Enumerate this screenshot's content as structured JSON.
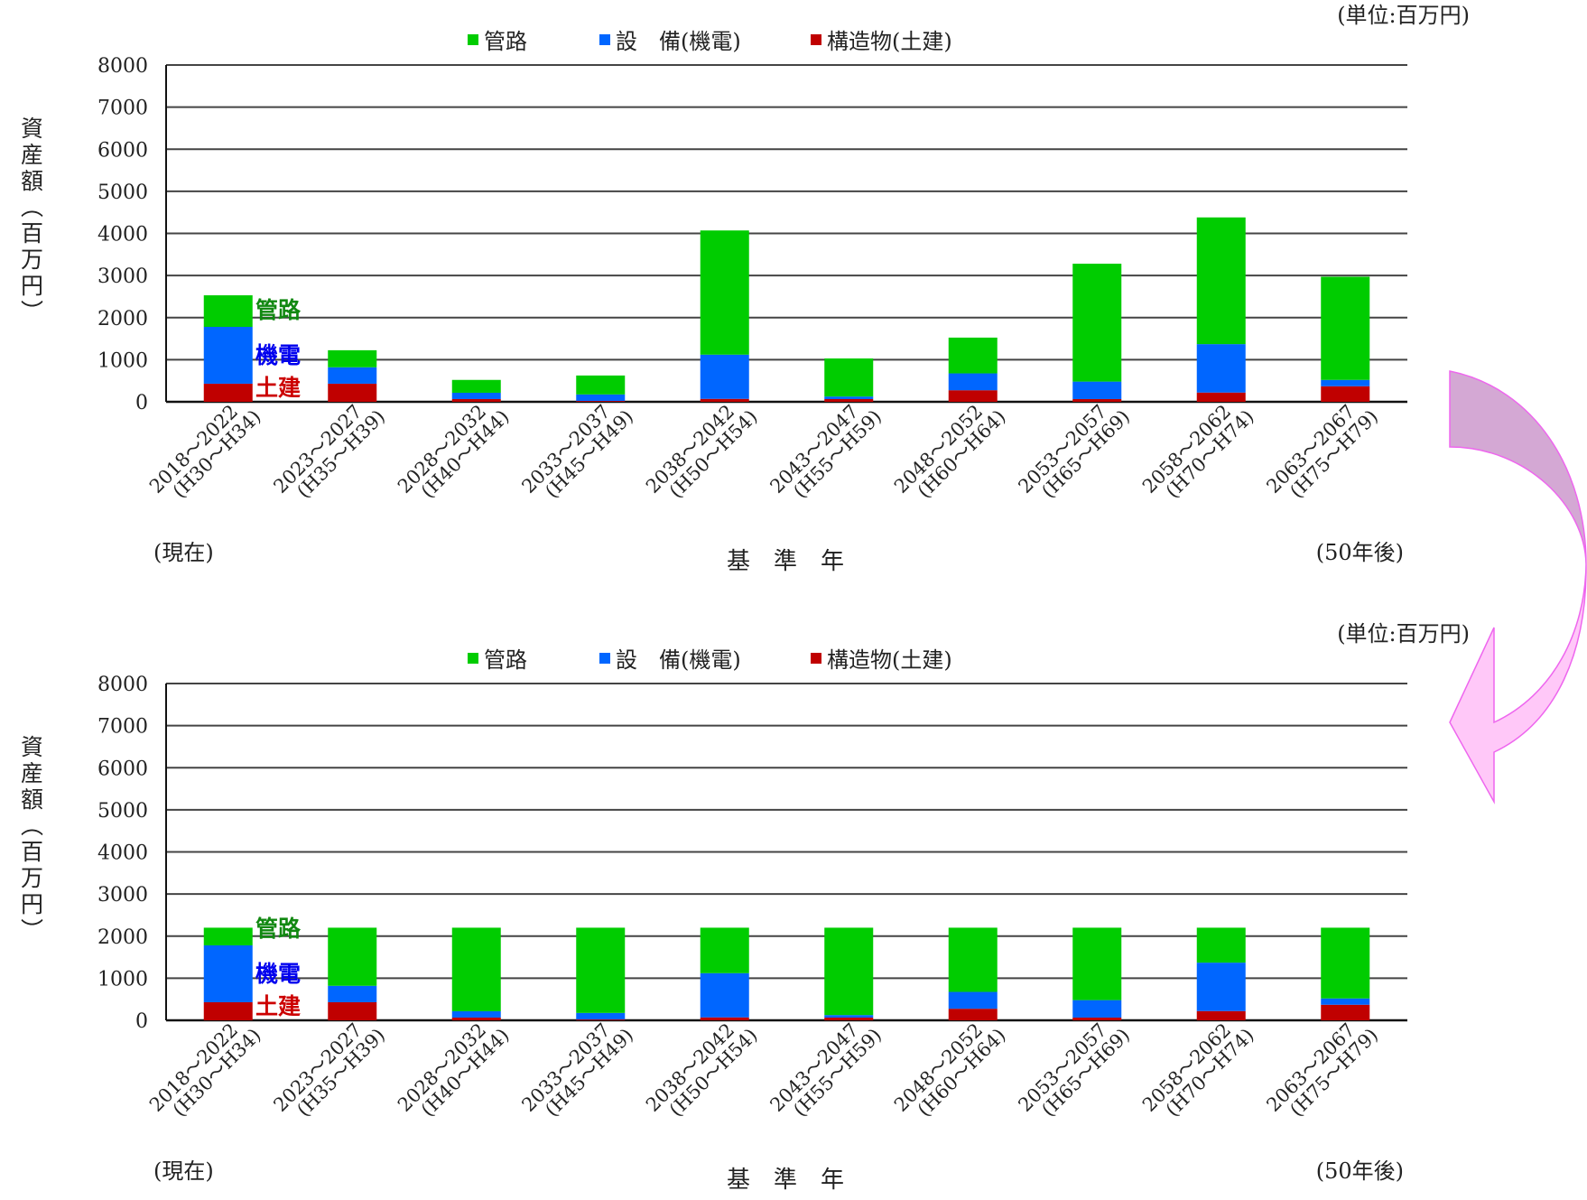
{
  "chart_data": [
    {
      "type": "bar",
      "stacked": true,
      "title": "",
      "unit_label": "(単位:百万円)",
      "xlabel": "基　準　年",
      "ylabel": "資産額（百万円）",
      "ylim": [
        0,
        8000
      ],
      "yticks": [
        0,
        1000,
        2000,
        3000,
        4000,
        5000,
        6000,
        7000,
        8000
      ],
      "grid": true,
      "legend_position": "top",
      "categories": [
        [
          "2018～2022",
          "(H30～H34)"
        ],
        [
          "2023～2027",
          "(H35～H39)"
        ],
        [
          "2028～2032",
          "(H40～H44)"
        ],
        [
          "2033～2037",
          "(H45～H49)"
        ],
        [
          "2038～2042",
          "(H50～H54)"
        ],
        [
          "2043～2047",
          "(H55～H59)"
        ],
        [
          "2048～2052",
          "(H60～H64)"
        ],
        [
          "2053～2057",
          "(H65～H69)"
        ],
        [
          "2058～2062",
          "(H70～H74)"
        ],
        [
          "2063～2067",
          "(H75～H79)"
        ]
      ],
      "annotations": {
        "first": "(現在)",
        "last": "(50年後)",
        "inbar": [
          "管路",
          "機電",
          "土建"
        ]
      },
      "series": [
        {
          "name": "構造物(土建)",
          "color": "#c00000",
          "values": [
            430,
            430,
            65,
            20,
            70,
            65,
            275,
            65,
            220,
            370
          ]
        },
        {
          "name": "設　備(機電)",
          "color": "#0066ff",
          "values": [
            1350,
            390,
            150,
            155,
            1050,
            60,
            400,
            415,
            1150,
            150
          ]
        },
        {
          "name": "管路",
          "color": "#00cc00",
          "values": [
            750,
            405,
            305,
            450,
            2950,
            905,
            850,
            2800,
            3010,
            2450
          ]
        }
      ]
    },
    {
      "type": "bar",
      "stacked": true,
      "title": "",
      "unit_label": "(単位:百万円)",
      "xlabel": "基　準　年",
      "ylabel": "資産額（百万円）",
      "ylim": [
        0,
        8000
      ],
      "yticks": [
        0,
        1000,
        2000,
        3000,
        4000,
        5000,
        6000,
        7000,
        8000
      ],
      "grid": true,
      "legend_position": "top",
      "categories": [
        [
          "2018～2022",
          "(H30～H34)"
        ],
        [
          "2023～2027",
          "(H35～H39)"
        ],
        [
          "2028～2032",
          "(H40～H44)"
        ],
        [
          "2033～2037",
          "(H45～H49)"
        ],
        [
          "2038～2042",
          "(H50～H54)"
        ],
        [
          "2043～2047",
          "(H55～H59)"
        ],
        [
          "2048～2052",
          "(H60～H64)"
        ],
        [
          "2053～2057",
          "(H65～H69)"
        ],
        [
          "2058～2062",
          "(H70～H74)"
        ],
        [
          "2063～2067",
          "(H75～H79)"
        ]
      ],
      "annotations": {
        "first": "(現在)",
        "last": "(50年後)",
        "inbar": [
          "管路",
          "機電",
          "土建"
        ]
      },
      "series": [
        {
          "name": "構造物(土建)",
          "color": "#c00000",
          "values": [
            430,
            430,
            65,
            20,
            70,
            65,
            275,
            65,
            220,
            370
          ]
        },
        {
          "name": "設　備(機電)",
          "color": "#0066ff",
          "values": [
            1350,
            390,
            150,
            155,
            1050,
            60,
            400,
            415,
            1150,
            150
          ]
        },
        {
          "name": "管路",
          "color": "#00cc00",
          "values": [
            420,
            1380,
            1985,
            2025,
            1080,
            2075,
            1525,
            1720,
            830,
            1680
          ]
        }
      ]
    }
  ],
  "colors": {
    "arrow_top": "#d4a8d4",
    "arrow_bottom": "#ffc8f8",
    "arrow_stroke": "#ee66ee"
  }
}
